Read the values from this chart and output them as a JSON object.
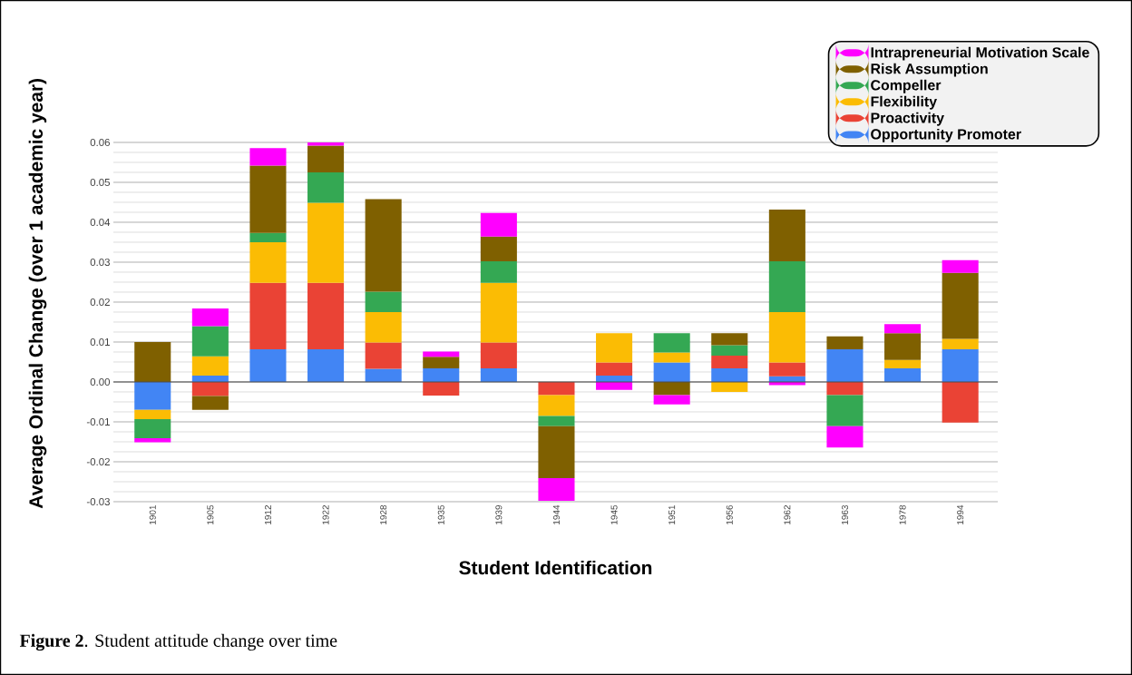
{
  "chart_data": {
    "type": "bar",
    "stacked": true,
    "xlabel": "Student Identification",
    "ylabel": "Average Ordinal Change (over 1 academic year)",
    "categories": [
      "1901",
      "1905",
      "1912",
      "1922",
      "1928",
      "1935",
      "1939",
      "1944",
      "1945",
      "1951",
      "1956",
      "1962",
      "1963",
      "1978",
      "1994"
    ],
    "series": [
      {
        "name": "Opportunity Promoter",
        "color": "#4285f4",
        "values": [
          -0.007,
          0.0016,
          0.0082,
          0.0082,
          0.0033,
          0.0034,
          0.0034,
          0,
          0.0016,
          0.0049,
          0.0034,
          0.0014,
          0.0082,
          0.0034,
          0.0082
        ]
      },
      {
        "name": "Proactivity",
        "color": "#ea4335",
        "values": [
          0,
          -0.0035,
          0.0166,
          0.0166,
          0.0066,
          -0.0034,
          0.0065,
          -0.0033,
          0.0033,
          0,
          0.0032,
          0.0035,
          -0.0033,
          0,
          -0.0102
        ]
      },
      {
        "name": "Flexibility",
        "color": "#fbbc04",
        "values": [
          -0.0023,
          0.0048,
          0.0102,
          0.0201,
          0.0076,
          0,
          0.0149,
          -0.0052,
          0.0073,
          0.0025,
          -0.0025,
          0.0126,
          0,
          0.0021,
          0.0026
        ]
      },
      {
        "name": "Compeller",
        "color": "#34a853",
        "values": [
          -0.0048,
          0.0076,
          0.0023,
          0.0076,
          0.0051,
          0,
          0.0054,
          -0.0026,
          0,
          0.0048,
          0.0026,
          0.0127,
          -0.0078,
          0,
          0
        ]
      },
      {
        "name": "Risk Assumption",
        "color": "#7f6000",
        "values": [
          0.01,
          -0.0035,
          0.0169,
          0.0067,
          0.0232,
          0.0029,
          0.0062,
          -0.013,
          0,
          -0.0033,
          0.003,
          0.013,
          0.0032,
          0.0067,
          0.0165
        ]
      },
      {
        "name": "Intrapreneurial Motivation Scale",
        "color": "#ff00ff",
        "values": [
          -0.001,
          0.0044,
          0.0044,
          0.0008,
          0,
          0.0013,
          0.0059,
          -0.0057,
          -0.002,
          -0.0023,
          0,
          -0.0008,
          -0.0053,
          0.0023,
          0.0032
        ]
      }
    ],
    "ylim": [
      -0.03,
      0.06
    ],
    "yticks": [
      -0.03,
      -0.02,
      -0.01,
      {
        "value": 0,
        "label": "0.00"
      },
      0.01,
      0.02,
      0.03,
      0.04,
      0.05,
      0.06
    ],
    "grid": "y",
    "legend": "top right",
    "annotations": [
      "**Figure 2**. Student attitude change over time"
    ]
  }
}
